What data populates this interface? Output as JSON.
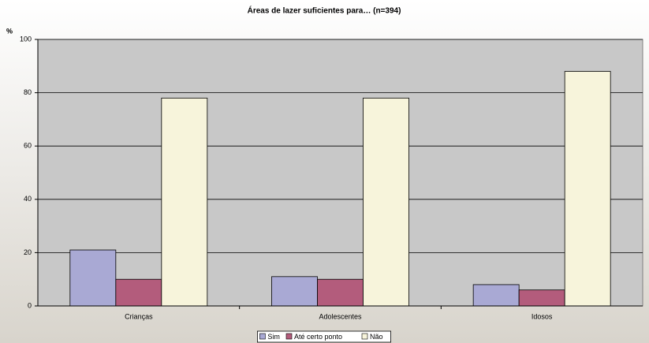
{
  "chart_data": {
    "type": "bar",
    "title": "Áreas de lazer suficientes para… (n=394)",
    "y_label": "%",
    "categories": [
      "Crianças",
      "Adolescentes",
      "Idosos"
    ],
    "series": [
      {
        "name": "Sim",
        "color": "#a9a9d4",
        "values": [
          21,
          11,
          8
        ]
      },
      {
        "name": "Até certo ponto",
        "color": "#b35c7c",
        "values": [
          10,
          10,
          6
        ]
      },
      {
        "name": "Não",
        "color": "#f7f4db",
        "values": [
          78,
          78,
          88
        ]
      }
    ],
    "ylim": [
      0,
      100
    ],
    "yticks": [
      0,
      20,
      40,
      60,
      80,
      100
    ],
    "grid": true,
    "legend": "bottom"
  }
}
